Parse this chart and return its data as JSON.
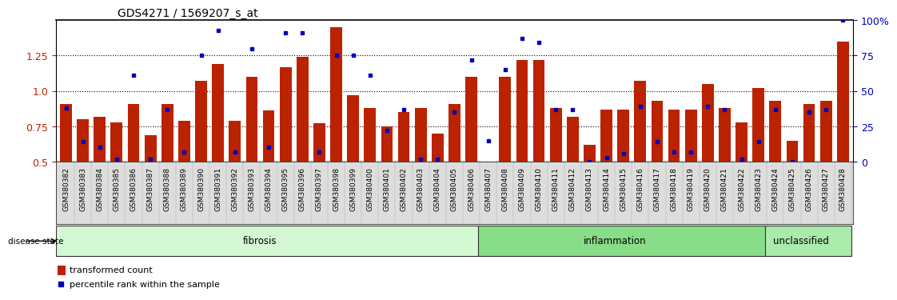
{
  "title": "GDS4271 / 1569207_s_at",
  "samples": [
    "GSM380382",
    "GSM380383",
    "GSM380384",
    "GSM380385",
    "GSM380386",
    "GSM380387",
    "GSM380388",
    "GSM380389",
    "GSM380390",
    "GSM380391",
    "GSM380392",
    "GSM380393",
    "GSM380394",
    "GSM380395",
    "GSM380396",
    "GSM380397",
    "GSM380398",
    "GSM380399",
    "GSM380400",
    "GSM380401",
    "GSM380402",
    "GSM380403",
    "GSM380404",
    "GSM380405",
    "GSM380406",
    "GSM380407",
    "GSM380408",
    "GSM380409",
    "GSM380410",
    "GSM380411",
    "GSM380412",
    "GSM380413",
    "GSM380414",
    "GSM380415",
    "GSM380416",
    "GSM380417",
    "GSM380418",
    "GSM380419",
    "GSM380420",
    "GSM380421",
    "GSM380422",
    "GSM380423",
    "GSM380424",
    "GSM380425",
    "GSM380426",
    "GSM380427",
    "GSM380428"
  ],
  "red_values": [
    0.91,
    0.8,
    0.82,
    0.78,
    0.91,
    0.69,
    0.91,
    0.79,
    1.07,
    1.19,
    0.79,
    1.1,
    0.86,
    1.17,
    1.24,
    0.77,
    1.45,
    0.97,
    0.88,
    0.75,
    0.85,
    0.88,
    0.7,
    0.91,
    1.1,
    0.45,
    1.1,
    1.22,
    1.22,
    0.88,
    0.82,
    0.62,
    0.87,
    0.87,
    1.07,
    0.93,
    0.87,
    0.87,
    1.05,
    0.88,
    0.78,
    1.02,
    0.93,
    0.65,
    0.91,
    0.93,
    1.35
  ],
  "blue_percentile": [
    38,
    14,
    10,
    2,
    61,
    2,
    37,
    7,
    75,
    93,
    7,
    80,
    10,
    91,
    91,
    7,
    75,
    75,
    61,
    22,
    37,
    2,
    2,
    35,
    72,
    15,
    65,
    87,
    84,
    37,
    37,
    0,
    3,
    6,
    39,
    14,
    7,
    7,
    39,
    37,
    2,
    14,
    37,
    0,
    35,
    37,
    100
  ],
  "groups": [
    {
      "label": "fibrosis",
      "start": 0,
      "end": 25,
      "color": "#d4f7d4"
    },
    {
      "label": "inflammation",
      "start": 25,
      "end": 42,
      "color": "#88dd88"
    },
    {
      "label": "unclassified",
      "start": 42,
      "end": 47,
      "color": "#aaeaaa"
    }
  ],
  "ylim_left": [
    0.5,
    1.5
  ],
  "ylim_right": [
    0,
    100
  ],
  "yticks_left": [
    0.5,
    0.75,
    1.0,
    1.25
  ],
  "yticks_right": [
    0,
    25,
    50,
    75,
    100
  ],
  "bar_color": "#bb2200",
  "dot_color": "#0000bb",
  "bg_color": "#ffffff",
  "title_fontsize": 10,
  "tick_fontsize": 6.5
}
